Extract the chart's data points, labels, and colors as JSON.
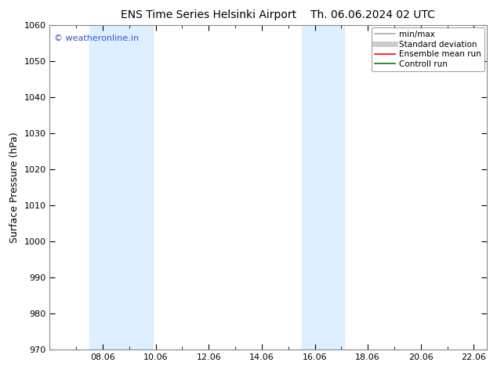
{
  "title_left": "ENS Time Series Helsinki Airport",
  "title_right": "Th. 06.06.2024 02 UTC",
  "ylabel": "Surface Pressure (hPa)",
  "ylim": [
    970,
    1060
  ],
  "yticks": [
    970,
    980,
    990,
    1000,
    1010,
    1020,
    1030,
    1040,
    1050,
    1060
  ],
  "xtick_positions": [
    8,
    10,
    12,
    14,
    16,
    18,
    20,
    22
  ],
  "xtick_labels": [
    "08.06",
    "10.06",
    "12.06",
    "14.06",
    "16.06",
    "18.06",
    "20.06",
    "22.06"
  ],
  "xlim": [
    6.0,
    22.5
  ],
  "background_color": "#ffffff",
  "plot_bg_color": "#ffffff",
  "shaded_bands": [
    {
      "x_start": 7.5,
      "x_end": 9.9,
      "color": "#ddeeff"
    },
    {
      "x_start": 15.5,
      "x_end": 17.1,
      "color": "#ddeeff"
    }
  ],
  "watermark_text": "© weatheronline.in",
  "watermark_color": "#3355cc",
  "legend_entries": [
    {
      "label": "min/max",
      "color": "#aaaaaa",
      "lw": 1.2,
      "style": "solid"
    },
    {
      "label": "Standard deviation",
      "color": "#cccccc",
      "lw": 5,
      "style": "solid"
    },
    {
      "label": "Ensemble mean run",
      "color": "#ff0000",
      "lw": 1.2,
      "style": "solid"
    },
    {
      "label": "Controll run",
      "color": "#008000",
      "lw": 1.2,
      "style": "solid"
    }
  ],
  "title_fontsize": 10,
  "ylabel_fontsize": 9,
  "tick_fontsize": 8,
  "watermark_fontsize": 8,
  "legend_fontsize": 7.5
}
